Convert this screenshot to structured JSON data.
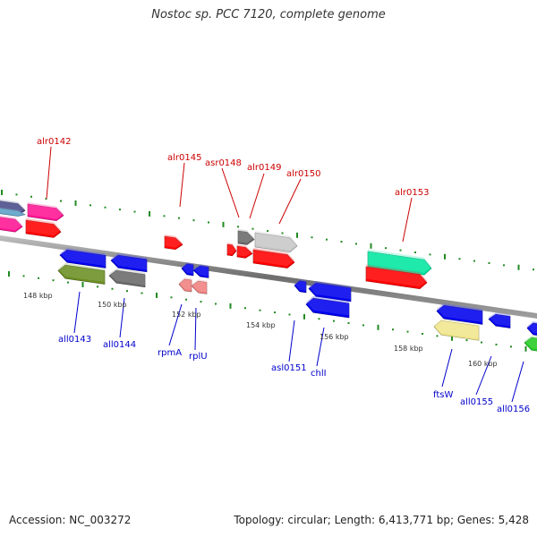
{
  "title": "Nostoc sp. PCC 7120, complete genome",
  "footer": {
    "accession": "Accession: NC_003272",
    "summary": "Topology: circular; Length: 6,413,771 bp; Genes: 5,428"
  },
  "kbp_labels": [
    "148 kbp",
    "150 kbp",
    "152 kbp",
    "154 kbp",
    "156 kbp",
    "158 kbp",
    "160 kbp"
  ],
  "forward_genes": [
    {
      "name": "alr0142",
      "color": "#ff1493"
    },
    {
      "name": "alr0145",
      "color": "#ff0000"
    },
    {
      "name": "asr0148",
      "color": "#ff0000"
    },
    {
      "name": "alr0149",
      "color": "#696969"
    },
    {
      "name": "alr0150",
      "color": "#c8c8c8"
    },
    {
      "name": "alr0153",
      "color": "#00e6a0"
    }
  ],
  "reverse_genes": [
    {
      "name": "all0143",
      "color": "#0000ee"
    },
    {
      "name": "all0144",
      "color": "#0000ee"
    },
    {
      "name": "rpmA",
      "color": "#0000ee"
    },
    {
      "name": "rplU",
      "color": "#f08080"
    },
    {
      "name": "asl0151",
      "color": "#0000ee"
    },
    {
      "name": "chlI",
      "color": "#0000ee"
    },
    {
      "name": "ftsW",
      "color": "#f0e68c"
    },
    {
      "name": "all0155",
      "color": "#0000ee"
    },
    {
      "name": "all0156",
      "color": "#22cc22"
    }
  ]
}
